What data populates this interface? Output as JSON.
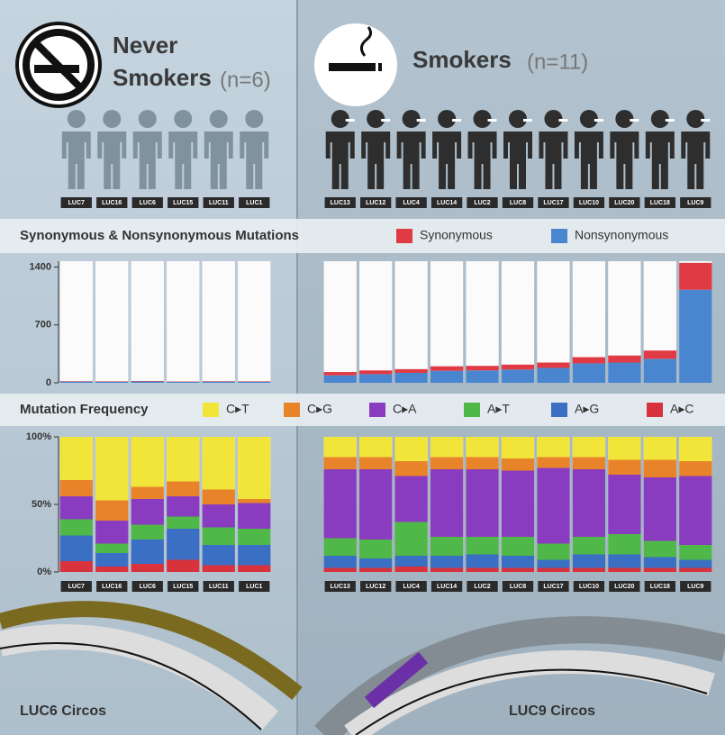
{
  "header": {
    "never": {
      "line1": "Never",
      "line2": "Smokers",
      "n": "(n=6)"
    },
    "smokers": {
      "title": "Smokers",
      "n": "(n=11)"
    }
  },
  "chart_data": [
    {
      "type": "bar",
      "stacked": true,
      "title": "Synonymous & Nonsynonymous Mutations",
      "categories": [
        "LUC7",
        "LUC16",
        "LUC6",
        "LUC15",
        "LUC11",
        "LUC1"
      ],
      "ylim": [
        0,
        1470
      ],
      "yticks": [
        0,
        700,
        1400
      ],
      "series": [
        {
          "name": "Nonsynonymous",
          "color": "#4a86d0",
          "values": [
            15,
            14,
            16,
            13,
            15,
            14
          ]
        },
        {
          "name": "Synonymous",
          "color": "#e03a44",
          "values": [
            5,
            5,
            6,
            4,
            5,
            5
          ]
        }
      ]
    },
    {
      "type": "bar",
      "stacked": true,
      "categories": [
        "LUC13",
        "LUC12",
        "LUC4",
        "LUC14",
        "LUC2",
        "LUC8",
        "LUC17",
        "LUC10",
        "LUC20",
        "LUC18",
        "LUC9"
      ],
      "ylim": [
        0,
        1470
      ],
      "series": [
        {
          "name": "Nonsynonymous",
          "color": "#4a86d0",
          "values": [
            90,
            105,
            120,
            145,
            150,
            160,
            180,
            235,
            245,
            290,
            1125
          ]
        },
        {
          "name": "Synonymous",
          "color": "#e03a44",
          "values": [
            40,
            45,
            45,
            55,
            55,
            60,
            65,
            75,
            85,
            100,
            325
          ]
        }
      ]
    },
    {
      "type": "bar",
      "stacked": true,
      "title": "Mutation Frequency",
      "categories": [
        "LUC7",
        "LUC16",
        "LUC6",
        "LUC15",
        "LUC11",
        "LUC1"
      ],
      "ylim": [
        0,
        100
      ],
      "yticks": [
        {
          "value": 0,
          "label": "0%"
        },
        {
          "value": 50,
          "label": "50%"
        },
        {
          "value": 100,
          "label": "100%"
        }
      ],
      "series": [
        {
          "name": "A▸C",
          "color": "#d8323c",
          "values": [
            8,
            4,
            6,
            9,
            5,
            5
          ]
        },
        {
          "name": "A▸G",
          "color": "#3b6fc4",
          "values": [
            19,
            10,
            18,
            23,
            15,
            15
          ]
        },
        {
          "name": "A▸T",
          "color": "#4fb848",
          "values": [
            12,
            7,
            11,
            9,
            13,
            12
          ]
        },
        {
          "name": "C▸A",
          "color": "#8a3cc0",
          "values": [
            17,
            17,
            19,
            15,
            17,
            19
          ]
        },
        {
          "name": "C▸G",
          "color": "#e8832a",
          "values": [
            12,
            15,
            9,
            11,
            11,
            3
          ]
        },
        {
          "name": "C▸T",
          "color": "#f2e53a",
          "values": [
            32,
            47,
            37,
            33,
            39,
            46
          ]
        }
      ]
    },
    {
      "type": "bar",
      "stacked": true,
      "categories": [
        "LUC13",
        "LUC12",
        "LUC4",
        "LUC14",
        "LUC2",
        "LUC8",
        "LUC17",
        "LUC10",
        "LUC20",
        "LUC18",
        "LUC9"
      ],
      "ylim": [
        0,
        100
      ],
      "series": [
        {
          "name": "A▸C",
          "color": "#d8323c",
          "values": [
            3,
            3,
            4,
            3,
            3,
            3,
            3,
            3,
            3,
            3,
            3
          ]
        },
        {
          "name": "A▸G",
          "color": "#3b6fc4",
          "values": [
            9,
            7,
            8,
            9,
            10,
            9,
            6,
            10,
            10,
            8,
            6
          ]
        },
        {
          "name": "A▸T",
          "color": "#4fb848",
          "values": [
            13,
            14,
            25,
            14,
            13,
            14,
            12,
            13,
            15,
            12,
            11
          ]
        },
        {
          "name": "C▸A",
          "color": "#8a3cc0",
          "values": [
            51,
            52,
            34,
            50,
            50,
            49,
            56,
            50,
            44,
            47,
            51
          ]
        },
        {
          "name": "C▸G",
          "color": "#e8832a",
          "values": [
            9,
            9,
            11,
            9,
            9,
            9,
            8,
            9,
            11,
            13,
            11
          ]
        },
        {
          "name": "C▸T",
          "color": "#f2e53a",
          "values": [
            15,
            15,
            18,
            15,
            15,
            16,
            15,
            15,
            17,
            17,
            18
          ]
        }
      ]
    }
  ],
  "circos": [
    "LUC6 Circos",
    "LUC9 Circos"
  ]
}
